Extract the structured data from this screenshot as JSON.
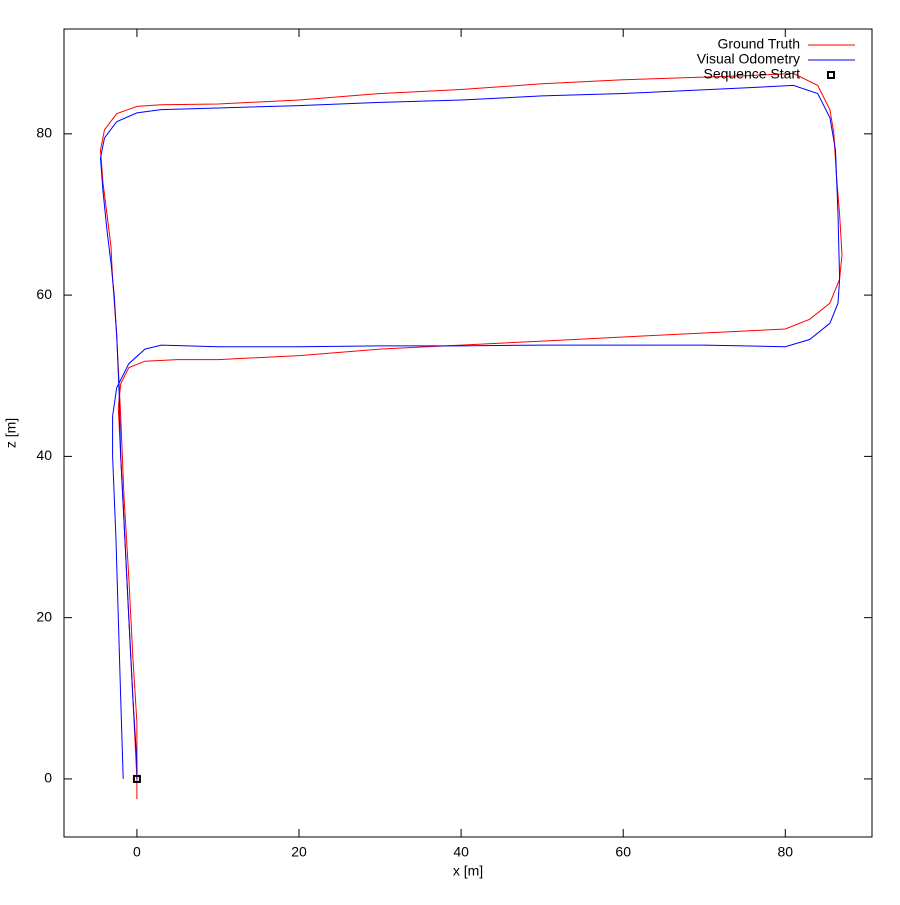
{
  "chart_data": {
    "type": "line",
    "xlabel": "x [m]",
    "ylabel": "z [m]",
    "xlim": [
      -9,
      90.7
    ],
    "ylim": [
      -7.2,
      93
    ],
    "xticks": [
      0,
      20,
      40,
      60,
      80
    ],
    "yticks": [
      0,
      20,
      40,
      60,
      80
    ],
    "grid": false,
    "legend": "top-right",
    "series": [
      {
        "name": "Ground Truth",
        "color": "#ff0000",
        "style": "line",
        "x": [
          0,
          -0.5,
          -1,
          -1.5,
          -2,
          -2.3,
          -2,
          -1,
          1,
          5,
          10,
          20,
          30,
          40,
          50,
          60,
          70,
          80,
          83,
          85.5,
          86.7,
          87,
          86.7,
          86.3,
          86,
          85.5,
          84,
          81,
          75,
          60,
          50,
          40,
          30,
          20,
          10,
          3,
          0,
          -2.5,
          -4,
          -4.5,
          -4.2,
          -3.7,
          -3.2,
          -3,
          -2.5,
          -2,
          -1.6,
          -1,
          -0.5,
          0,
          0,
          0
        ],
        "values": [
          0,
          10,
          20,
          30,
          40,
          46,
          49,
          51,
          51.8,
          52,
          52,
          52.5,
          53.3,
          53.8,
          54.3,
          54.8,
          55.3,
          55.8,
          57,
          59,
          62,
          65,
          70,
          75,
          80,
          83,
          86,
          87.5,
          87.2,
          86.7,
          86.2,
          85.5,
          85,
          84.2,
          83.7,
          83.6,
          83.4,
          82.5,
          80.5,
          78,
          74,
          70,
          66,
          62,
          55,
          45,
          35,
          25,
          15,
          7,
          0,
          -2.5
        ]
      },
      {
        "name": "Visual Odometry",
        "color": "#0000ff",
        "style": "line",
        "x": [
          -1.7,
          -2,
          -2.3,
          -2.6,
          -3,
          -3,
          -2.5,
          -1,
          1,
          3,
          10,
          20,
          30,
          40,
          50,
          60,
          70,
          80,
          83,
          85.5,
          86.5,
          86.7,
          86.5,
          86.2,
          85.5,
          84,
          81,
          75,
          60,
          50,
          40,
          30,
          20,
          10,
          3,
          0,
          -2.5,
          -4,
          -4.5,
          -4.2,
          -3.7,
          -3.2,
          -2.8,
          -2.5,
          -2.2,
          -2,
          -1.5,
          -1,
          -0.5,
          0,
          0
        ],
        "values": [
          0,
          10,
          20,
          30,
          40,
          45,
          48.5,
          51.5,
          53.3,
          53.8,
          53.6,
          53.6,
          53.7,
          53.7,
          53.8,
          53.8,
          53.8,
          53.6,
          54.5,
          56.5,
          59,
          62,
          70,
          78,
          82,
          85,
          86,
          85.7,
          85,
          84.7,
          84.2,
          83.9,
          83.5,
          83.2,
          83,
          82.6,
          81.5,
          79.5,
          77,
          73,
          68,
          64,
          60,
          55,
          48,
          40,
          30,
          20,
          10,
          2,
          0
        ]
      },
      {
        "name": "Sequence Start",
        "color": "#000000",
        "style": "point",
        "x": [
          0
        ],
        "values": [
          0
        ]
      }
    ]
  }
}
